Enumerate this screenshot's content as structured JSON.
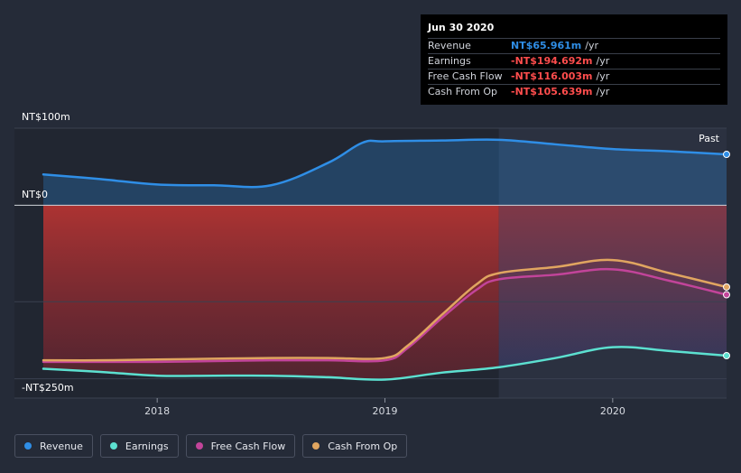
{
  "tooltip": {
    "date": "Jun 30 2020",
    "rows": [
      {
        "label": "Revenue",
        "value": "NT$65.961m",
        "unit": "/yr",
        "color": "#2f8ee6"
      },
      {
        "label": "Earnings",
        "value": "-NT$194.692m",
        "unit": "/yr",
        "color": "#ff4d4d"
      },
      {
        "label": "Free Cash Flow",
        "value": "-NT$116.003m",
        "unit": "/yr",
        "color": "#ff4d4d"
      },
      {
        "label": "Cash From Op",
        "value": "-NT$105.639m",
        "unit": "/yr",
        "color": "#ff4d4d"
      }
    ]
  },
  "legend": [
    {
      "label": "Revenue",
      "color": "#2f8ee6"
    },
    {
      "label": "Earnings",
      "color": "#5ce0d0"
    },
    {
      "label": "Free Cash Flow",
      "color": "#c2449a"
    },
    {
      "label": "Cash From Op",
      "color": "#e0a560"
    }
  ],
  "chart_data": {
    "type": "line",
    "title": "",
    "xlabel": "",
    "ylabel": "",
    "past_label": "Past",
    "y_top_label": "NT$100m",
    "y_zero_label": "NT$0",
    "y_bottom_label": "-NT$250m",
    "ylim": [
      -250,
      100
    ],
    "xlim": [
      2017.5,
      2020.5
    ],
    "x_ticks": [
      2018,
      2019,
      2020
    ],
    "x_tick_labels": [
      "2018",
      "2019",
      "2020"
    ],
    "past_start": 2019.5,
    "series": [
      {
        "name": "Revenue",
        "color": "#2f8ee6",
        "x": [
          2017.5,
          2017.75,
          2018.0,
          2018.25,
          2018.5,
          2018.75,
          2018.9,
          2019.0,
          2019.25,
          2019.5,
          2019.75,
          2020.0,
          2020.25,
          2020.5
        ],
        "y": [
          40,
          34,
          27,
          26,
          26,
          55,
          81,
          83,
          84,
          85,
          79,
          73,
          70,
          66
        ]
      },
      {
        "name": "Earnings",
        "color": "#5ce0d0",
        "x": [
          2017.5,
          2017.75,
          2018.0,
          2018.25,
          2018.5,
          2018.75,
          2019.0,
          2019.25,
          2019.5,
          2019.75,
          2020.0,
          2020.25,
          2020.5
        ],
        "y": [
          -212,
          -216,
          -221,
          -221,
          -221,
          -223,
          -226,
          -217,
          -210,
          -198,
          -184,
          -189,
          -195
        ]
      },
      {
        "name": "Free Cash Flow",
        "color": "#c2449a",
        "x": [
          2017.5,
          2017.75,
          2018.0,
          2018.25,
          2018.5,
          2018.75,
          2019.0,
          2019.1,
          2019.25,
          2019.4,
          2019.5,
          2019.75,
          2020.0,
          2020.25,
          2020.5
        ],
        "y": [
          -203,
          -203,
          -203,
          -202,
          -201,
          -201,
          -201,
          -185,
          -146,
          -110,
          -96,
          -90,
          -83,
          -98,
          -116
        ]
      },
      {
        "name": "Cash From Op",
        "color": "#e0a560",
        "x": [
          2017.5,
          2017.75,
          2018.0,
          2018.25,
          2018.5,
          2018.75,
          2019.0,
          2019.1,
          2019.25,
          2019.4,
          2019.5,
          2019.75,
          2020.0,
          2020.25,
          2020.5
        ],
        "y": [
          -201,
          -201,
          -200,
          -199,
          -198,
          -198,
          -198,
          -182,
          -142,
          -103,
          -88,
          -80,
          -71,
          -88,
          -106
        ]
      }
    ]
  }
}
